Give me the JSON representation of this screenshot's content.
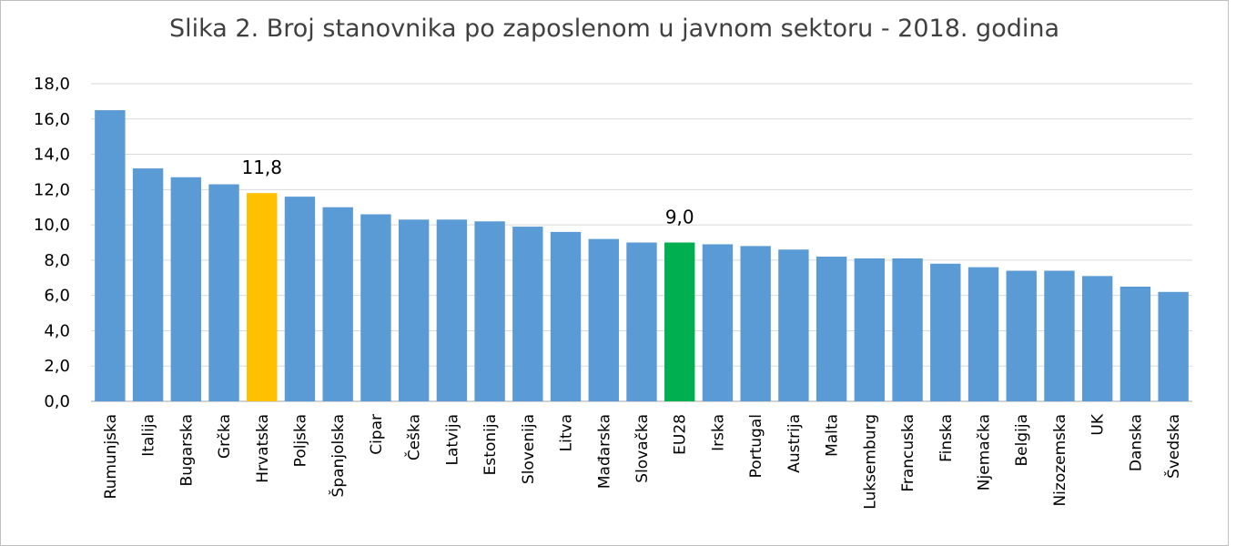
{
  "chart_data": {
    "type": "bar",
    "title": "Slika 2. Broj stanovnika po zaposlenom u javnom sektoru - 2018. godina",
    "xlabel": "",
    "ylabel": "",
    "ylim": [
      0,
      18
    ],
    "yticks": [
      "0,0",
      "2,0",
      "4,0",
      "6,0",
      "8,0",
      "10,0",
      "12,0",
      "14,0",
      "16,0",
      "18,0"
    ],
    "grid": true,
    "categories": [
      "Rumunjska",
      "Italija",
      "Bugarska",
      "Grčka",
      "Hrvatska",
      "Poljska",
      "Španjolska",
      "Cipar",
      "Češka",
      "Latvija",
      "Estonija",
      "Slovenija",
      "Litva",
      "Mađarska",
      "Slovačka",
      "EU28",
      "Irska",
      "Portugal",
      "Austrija",
      "Malta",
      "Luksemburg",
      "Francuska",
      "Finska",
      "Njemačka",
      "Belgija",
      "Nizozemska",
      "UK",
      "Danska",
      "Švedska"
    ],
    "values": [
      16.5,
      13.2,
      12.7,
      12.3,
      11.8,
      11.6,
      11.0,
      10.6,
      10.3,
      10.3,
      10.2,
      9.9,
      9.6,
      9.2,
      9.0,
      9.0,
      8.9,
      8.8,
      8.6,
      8.2,
      8.1,
      8.1,
      7.8,
      7.6,
      7.4,
      7.4,
      7.1,
      6.5,
      6.2
    ],
    "colors": {
      "default": "#5b9bd5",
      "Hrvatska": "#ffc000",
      "EU28": "#00b050",
      "grid": "#d9d9d9",
      "axis": "#a6a6a6"
    },
    "data_labels": [
      {
        "category": "Hrvatska",
        "text": "11,8"
      },
      {
        "category": "EU28",
        "text": "9,0"
      }
    ]
  }
}
